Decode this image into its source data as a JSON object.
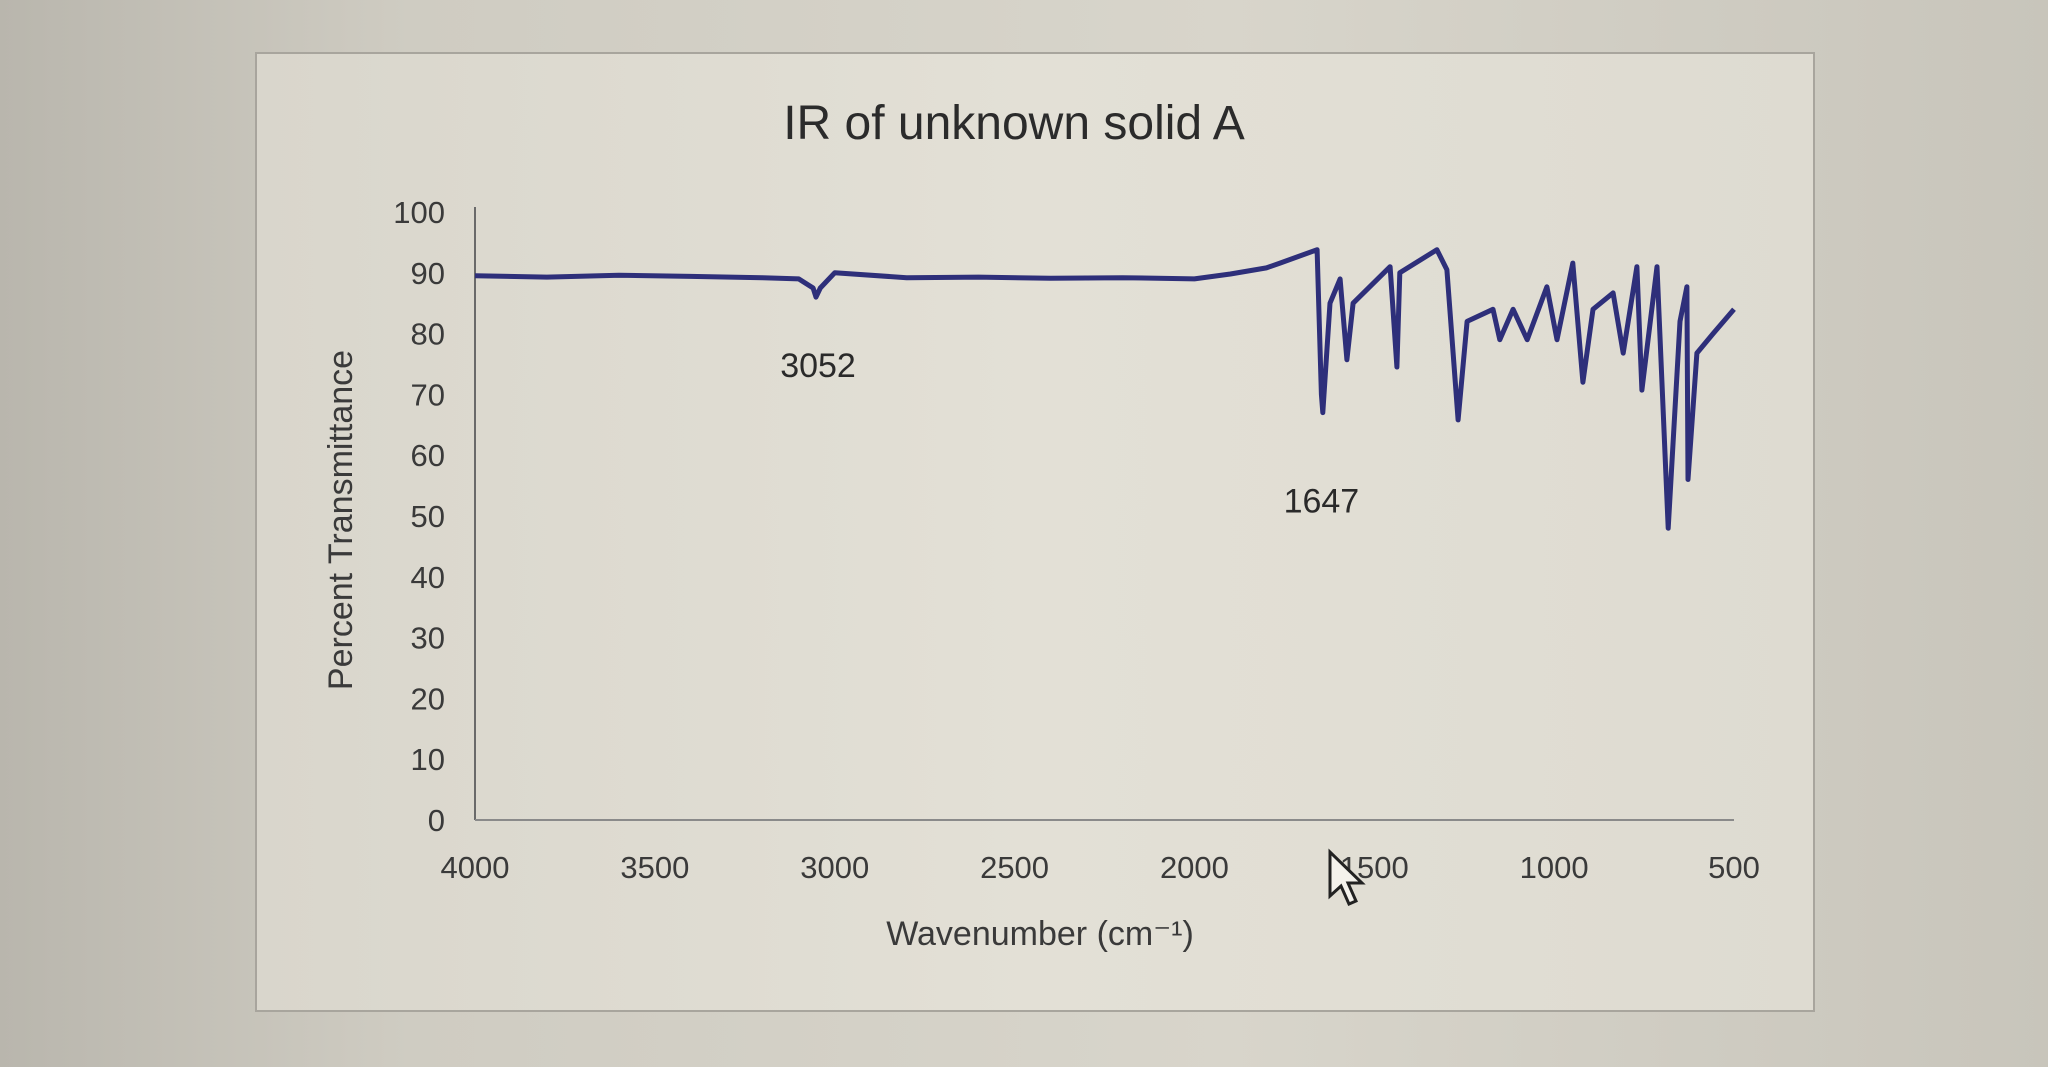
{
  "chart_data": {
    "type": "line",
    "title": "IR of unknown solid A",
    "xlabel": "Wavenumber (cm⁻¹)",
    "ylabel": "Percent Transmittance",
    "xlim": [
      4000,
      500
    ],
    "ylim": [
      0,
      100
    ],
    "x_reversed": true,
    "grid": false,
    "legend": "none",
    "xticks": [
      "4000",
      "3500",
      "3000",
      "2500",
      "2000",
      "1500",
      "1000",
      "500"
    ],
    "yticks": [
      "0",
      "10",
      "20",
      "30",
      "40",
      "50",
      "60",
      "70",
      "80",
      "90",
      "100"
    ],
    "line_color": "#2e2f7a",
    "annotations": [
      {
        "text": "3052",
        "x": 3052,
        "y": 86
      },
      {
        "text": "1647",
        "x": 1647,
        "y": 67
      }
    ],
    "series": [
      {
        "x": [
          4000,
          3800,
          3600,
          3400,
          3200,
          3100,
          3060,
          3052,
          3040,
          3000,
          2800,
          2600,
          2400,
          2200,
          2000,
          1900,
          1800,
          1762,
          1659,
          1647,
          1643,
          1623,
          1595,
          1576,
          1559,
          1456,
          1437,
          1429,
          1326,
          1298,
          1267,
          1242,
          1170,
          1151,
          1114,
          1075,
          1020,
          992,
          948,
          920,
          892,
          836,
          808,
          770,
          756,
          714,
          683,
          650,
          631,
          628,
          603,
          558,
          500
        ],
        "y": [
          89.5,
          89.3,
          89.6,
          89.4,
          89.2,
          89,
          87.5,
          86,
          87.5,
          90,
          89.2,
          89.3,
          89.1,
          89.2,
          89,
          89.8,
          90.8,
          91.6,
          93.8,
          70,
          67,
          85,
          89,
          75.7,
          85,
          91,
          74.5,
          90,
          93.8,
          90.5,
          65.8,
          82,
          84,
          79,
          84,
          79,
          87.7,
          79,
          91.6,
          72,
          84,
          86.7,
          76.8,
          91,
          70.7,
          91,
          48,
          82,
          87.7,
          56,
          76.8,
          80,
          84
        ]
      }
    ]
  },
  "cursor_icon": "mouse-pointer-icon"
}
